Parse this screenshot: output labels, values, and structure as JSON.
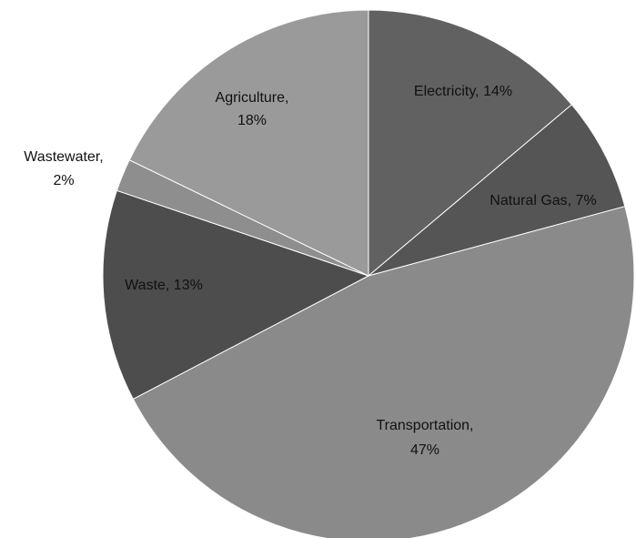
{
  "chart_data": {
    "type": "pie",
    "title": "",
    "categories": [
      "Electricity",
      "Natural Gas",
      "Transportation",
      "Waste",
      "Wastewater",
      "Agriculture"
    ],
    "values": [
      14,
      7,
      47,
      13,
      2,
      18
    ],
    "unit": "%",
    "colors": [
      "#616161",
      "#555555",
      "#8a8a8a",
      "#4d4d4d",
      "#8e8e8e",
      "#9a9a9a"
    ],
    "labels": [
      [
        "Electricity, 14%"
      ],
      [
        "Natural Gas, 7%"
      ],
      [
        "Transportation,",
        "47%"
      ],
      [
        "Waste, 13%"
      ],
      [
        "Wastewater,",
        "2%"
      ],
      [
        "Agriculture,",
        "18%"
      ]
    ],
    "legend": "none",
    "label_placement": "on-slice"
  }
}
